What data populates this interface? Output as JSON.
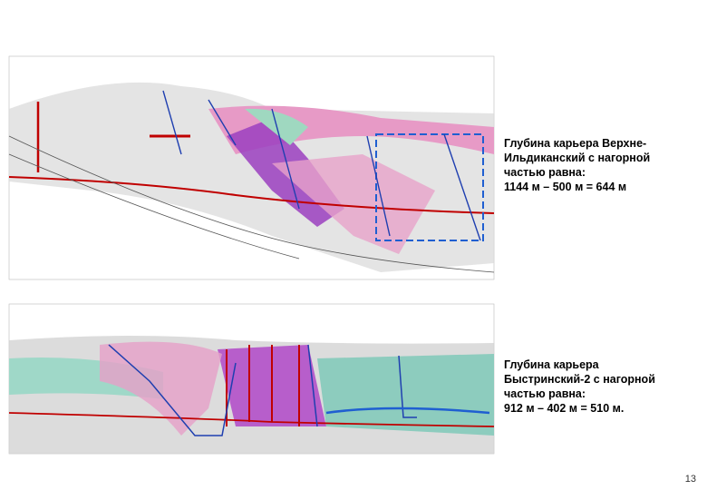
{
  "slide": {
    "sections": [
      {
        "caption_lines": [
          "Глубина карьера Верхне-",
          "Ильдиканский с нагорной",
          "частью равна:",
          "1144 м – 500 м = 644 м"
        ]
      },
      {
        "caption_lines": [
          "Глубина карьера",
          "Быстринский-2  с нагорной",
          "частью равна:",
          "912 м – 402 м = 510 м."
        ]
      }
    ],
    "page_number": "13"
  }
}
